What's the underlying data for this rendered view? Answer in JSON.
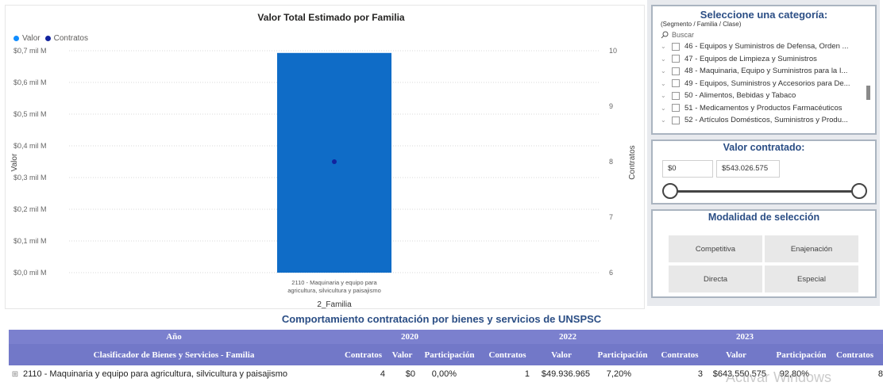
{
  "chart": {
    "title": "Valor Total Estimado por Familia",
    "legend": [
      {
        "label": "Valor",
        "color": "#118dff"
      },
      {
        "label": "Contratos",
        "color": "#12239e"
      }
    ]
  },
  "chart_data": {
    "type": "bar",
    "title": "Valor Total Estimado por Familia",
    "xlabel": "2_Familia",
    "ylabel": "Valor",
    "y2label": "Contratos",
    "categories": [
      "2110 - Maquinaria y equipo para agricultura, silvicultura y paisajismo"
    ],
    "category_label_lines": [
      "2110 - Maquinaria y equipo para",
      "agricultura, silvicultura y paisajismo"
    ],
    "series": [
      {
        "name": "Valor",
        "type": "bar",
        "axis": "left",
        "color": "#0f6cc7",
        "values": [
          0.693
        ]
      },
      {
        "name": "Contratos",
        "type": "point",
        "axis": "right",
        "color": "#12239e",
        "values": [
          8
        ]
      }
    ],
    "ylim": [
      0,
      0.7
    ],
    "y_ticks": [
      0,
      0.1,
      0.2,
      0.3,
      0.4,
      0.5,
      0.6,
      0.7
    ],
    "y_tick_labels": [
      "$0,0 mil M",
      "$0,1 mil M",
      "$0,2 mil M",
      "$0,3 mil M",
      "$0,4 mil M",
      "$0,5 mil M",
      "$0,6 mil M",
      "$0,7 mil M"
    ],
    "y2lim": [
      6,
      10
    ],
    "y2_ticks": [
      6,
      7,
      8,
      9,
      10
    ],
    "y2_tick_labels": [
      "6",
      "7",
      "8",
      "9",
      "10"
    ],
    "grid": true,
    "legend_position": "top-left"
  },
  "category_slicer": {
    "title": "Seleccione una categoría:",
    "subtitle": "(Segmento / Familia / Clase)",
    "search_placeholder": "Buscar",
    "items": [
      "46 - Equipos y Suministros de Defensa, Orden ...",
      "47 - Equipos de Limpieza y Suministros",
      "48 - Maquinaria, Equipo y Suministros para la I...",
      "49 - Equipos, Suministros y Accesorios para De...",
      "50 - Alimentos, Bebidas y Tabaco",
      "51 - Medicamentos y Productos Farmacéuticos",
      "52 - Artículos Domésticos, Suministros y Produ..."
    ]
  },
  "value_slicer": {
    "title": "Valor contratado:",
    "min": "$0",
    "max": "$543.026.575"
  },
  "modality_slicer": {
    "title": "Modalidad de selección",
    "options": [
      "Competitiva",
      "Enajenación",
      "Directa",
      "Especial"
    ]
  },
  "table": {
    "title": "Comportamiento contratación por bienes y servicios de UNSPSC",
    "year_label": "Año",
    "years": [
      "2020",
      "2022",
      "2023"
    ],
    "row_header": "Clasificador de Bienes y Servicios - Familia",
    "columns": [
      "Contratos",
      "Valor",
      "Participación",
      "Contratos",
      "Valor",
      "Participación",
      "Contratos",
      "Valor",
      "Participación",
      "Contratos"
    ],
    "rows": [
      {
        "expand": "⊞",
        "label": "2110 - Maquinaria y equipo para agricultura, silvicultura y paisajismo",
        "cells": [
          "4",
          "$0",
          "0,00%",
          "1",
          "$49.936.965",
          "7,20%",
          "3",
          "$643.550.575",
          "92,80%",
          "8"
        ]
      }
    ]
  },
  "watermark": "Activar Windows"
}
